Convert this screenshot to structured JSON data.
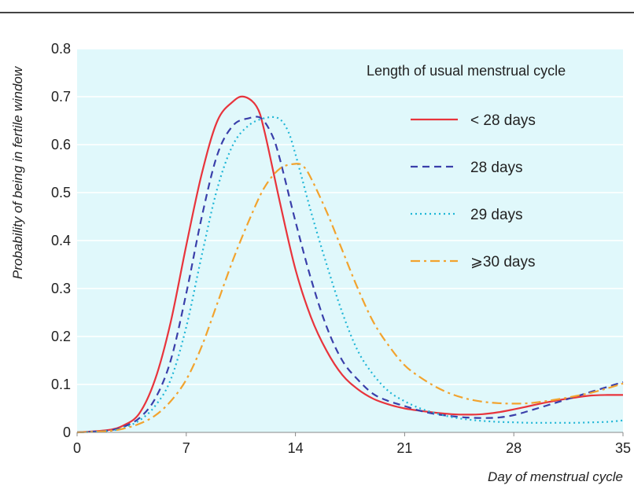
{
  "chart_data": {
    "type": "line",
    "title": "",
    "xlabel": "Day of menstrual cycle",
    "ylabel": "Probability of being in fertile window",
    "xlim": [
      0,
      35
    ],
    "ylim": [
      0,
      0.8
    ],
    "x_ticks": [
      "0",
      "7",
      "14",
      "21",
      "28",
      "35"
    ],
    "y_ticks": [
      "0",
      "0.1",
      "0.2",
      "0.3",
      "0.4",
      "0.5",
      "0.6",
      "0.7",
      "0.8"
    ],
    "grid": true,
    "legend_title": "Length of usual menstrual cycle",
    "legend_position": "top-right",
    "colors": {
      "plot_background": "#e0f8fb",
      "grid": "#ffffff",
      "top_rule": "#444444"
    },
    "series": [
      {
        "name": "< 28 days",
        "color": "#e8343c",
        "dash": "solid",
        "x": [
          0,
          2,
          3,
          4,
          5,
          6,
          7,
          8,
          9,
          10,
          10.7,
          11.5,
          12,
          13,
          14,
          15,
          16,
          17,
          18,
          19,
          20,
          21,
          22,
          23,
          24,
          25,
          26,
          27,
          28,
          29,
          30,
          31,
          32,
          33,
          34,
          35
        ],
        "y": [
          0.0,
          0.005,
          0.015,
          0.04,
          0.11,
          0.23,
          0.39,
          0.54,
          0.65,
          0.69,
          0.7,
          0.68,
          0.63,
          0.48,
          0.34,
          0.24,
          0.17,
          0.12,
          0.09,
          0.07,
          0.058,
          0.05,
          0.045,
          0.041,
          0.038,
          0.037,
          0.038,
          0.042,
          0.048,
          0.055,
          0.062,
          0.068,
          0.073,
          0.077,
          0.078,
          0.078
        ]
      },
      {
        "name": "28 days",
        "color": "#3a3faa",
        "dash": "dashed",
        "x": [
          0,
          2,
          3,
          4,
          5,
          6,
          7,
          8,
          9,
          10,
          11,
          11.8,
          12.5,
          13,
          14,
          15,
          16,
          17,
          18,
          19,
          20,
          21,
          22,
          23,
          24,
          25,
          26,
          27,
          28,
          29,
          30,
          31,
          32,
          33,
          34,
          35
        ],
        "y": [
          0.0,
          0.004,
          0.012,
          0.03,
          0.07,
          0.15,
          0.29,
          0.45,
          0.58,
          0.64,
          0.655,
          0.655,
          0.62,
          0.57,
          0.44,
          0.32,
          0.22,
          0.15,
          0.11,
          0.08,
          0.065,
          0.055,
          0.045,
          0.038,
          0.034,
          0.031,
          0.03,
          0.031,
          0.036,
          0.045,
          0.055,
          0.065,
          0.075,
          0.085,
          0.095,
          0.105
        ]
      },
      {
        "name": "29 days",
        "color": "#1fb6d6",
        "dash": "dotted",
        "x": [
          0,
          2,
          3,
          4,
          5,
          6,
          7,
          8,
          9,
          10,
          11,
          12,
          12.9,
          13.5,
          14,
          15,
          16,
          17,
          18,
          19,
          20,
          21,
          22,
          23,
          24,
          25,
          26,
          27,
          28,
          29,
          30,
          31,
          32,
          33,
          34,
          35
        ],
        "y": [
          0.0,
          0.003,
          0.01,
          0.025,
          0.055,
          0.11,
          0.22,
          0.37,
          0.51,
          0.6,
          0.64,
          0.655,
          0.655,
          0.63,
          0.58,
          0.46,
          0.35,
          0.25,
          0.17,
          0.12,
          0.085,
          0.065,
          0.05,
          0.04,
          0.032,
          0.027,
          0.024,
          0.022,
          0.021,
          0.02,
          0.02,
          0.02,
          0.02,
          0.021,
          0.022,
          0.025
        ]
      },
      {
        "name": "⩾30 days",
        "color": "#f2a32e",
        "dash": "dashdot",
        "x": [
          0,
          2,
          3,
          4,
          5,
          6,
          7,
          8,
          9,
          10,
          11,
          12,
          13,
          14,
          14.5,
          15,
          16,
          17,
          18,
          19,
          20,
          21,
          22,
          23,
          24,
          25,
          26,
          27,
          28,
          29,
          30,
          31,
          32,
          33,
          34,
          35
        ],
        "y": [
          0.0,
          0.003,
          0.008,
          0.018,
          0.035,
          0.065,
          0.11,
          0.18,
          0.27,
          0.36,
          0.44,
          0.51,
          0.55,
          0.56,
          0.555,
          0.53,
          0.46,
          0.38,
          0.3,
          0.23,
          0.18,
          0.14,
          0.115,
          0.095,
          0.08,
          0.07,
          0.064,
          0.061,
          0.06,
          0.061,
          0.065,
          0.07,
          0.076,
          0.083,
          0.092,
          0.102
        ]
      }
    ]
  }
}
